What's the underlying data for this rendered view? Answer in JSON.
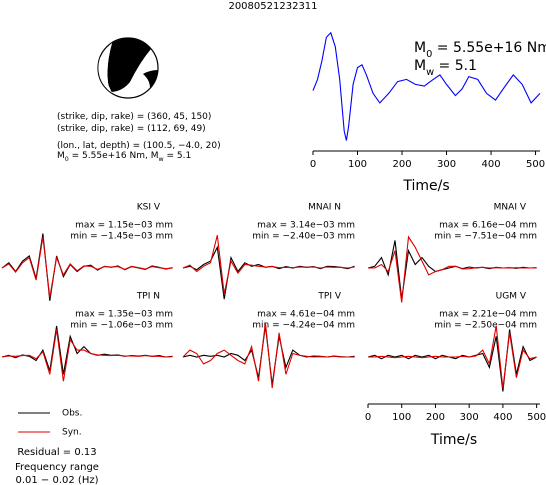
{
  "title": "20080521232311",
  "source": {
    "lines": [
      [
        "(strike, dip, rake) = (360, 45, 150)"
      ],
      [
        "(strike, dip, rake) = (112, 69, 49)"
      ],
      [
        "(lon., lat, depth) = (100.5, −4.0, 20)"
      ],
      [
        "M",
        "0",
        " = 5.55e+16 Nm, M",
        "w",
        " = 5.1"
      ]
    ]
  },
  "residual": "Residual = 0.13",
  "frequency_range": [
    "Frequency range",
    "0.01 − 0.02 (Hz)"
  ],
  "chart_data": [
    {
      "type": "line",
      "xlabel": "Time/s",
      "annotations": [
        [
          "M",
          "0",
          " = 5.55e+16 Nm"
        ],
        [
          "M",
          "w",
          " = 5.1"
        ]
      ],
      "x": [
        0,
        10,
        20,
        30,
        40,
        50,
        60,
        70,
        75,
        80,
        90,
        100,
        110,
        120,
        135,
        150,
        170,
        190,
        210,
        230,
        250,
        270,
        285,
        300,
        320,
        335,
        350,
        370,
        390,
        410,
        430,
        450,
        470,
        490,
        510
      ],
      "values": [
        -0.03,
        0.17,
        0.5,
        0.92,
        1.0,
        0.75,
        0.17,
        -0.75,
        -0.92,
        -0.67,
        0.08,
        0.38,
        0.43,
        0.25,
        -0.08,
        -0.25,
        -0.08,
        0.13,
        0.17,
        0.08,
        0.05,
        0.17,
        0.25,
        0.08,
        -0.12,
        0,
        0.22,
        0.17,
        -0.08,
        -0.2,
        0.03,
        0.25,
        0.08,
        -0.25,
        -0.08
      ],
      "color": "#0000ff",
      "xlim": [
        0,
        510
      ],
      "ylim": [
        -1.0,
        1.05
      ],
      "xticks": [
        0,
        100,
        200,
        300,
        400,
        500
      ]
    },
    {
      "type": "line",
      "station": "KSI V",
      "max_label": "max = 1.15e−03 mm",
      "min_label": "min = −1.45e−03 mm",
      "x": [
        0,
        20,
        40,
        60,
        80,
        100,
        120,
        140,
        160,
        180,
        200,
        220,
        240,
        260,
        280,
        300,
        320,
        340,
        360,
        380,
        400,
        420,
        440,
        460,
        480,
        500
      ],
      "xlim": [
        0,
        510
      ],
      "ylim": [
        -1.1,
        1.1
      ],
      "series": [
        {
          "name": "Obs.",
          "color": "#000000",
          "values": [
            0,
            0.15,
            -0.1,
            0.2,
            0.35,
            -0.3,
            1.0,
            -0.95,
            0.35,
            -0.25,
            0.1,
            -0.1,
            0.05,
            0.08,
            -0.06,
            0.05,
            0.02,
            0.06,
            -0.05,
            0.04,
            0,
            -0.04,
            0.06,
            0.02,
            -0.03,
            0.01
          ]
        },
        {
          "name": "Syn.",
          "color": "#e00000",
          "values": [
            0,
            0.12,
            -0.12,
            0.15,
            0.3,
            -0.35,
            0.9,
            -0.85,
            0.3,
            -0.2,
            0.12,
            -0.08,
            0.06,
            0.05,
            -0.04,
            0.04,
            0.03,
            0.04,
            -0.04,
            0.05,
            0.01,
            -0.03,
            0.04,
            0.01,
            -0.02,
            0
          ]
        }
      ]
    },
    {
      "type": "line",
      "station": "MNAI N",
      "max_label": "max = 3.14e−03 mm",
      "min_label": "min = −2.40e−03 mm",
      "x": [
        0,
        20,
        40,
        60,
        80,
        100,
        120,
        140,
        160,
        180,
        200,
        220,
        240,
        260,
        280,
        300,
        320,
        340,
        360,
        380,
        400,
        420,
        440,
        460,
        480,
        500
      ],
      "xlim": [
        0,
        510
      ],
      "ylim": [
        -1.1,
        1.1
      ],
      "series": [
        {
          "color": "#000000",
          "values": [
            0,
            0.05,
            -0.05,
            0.1,
            0.2,
            0.6,
            -0.9,
            0.3,
            -0.1,
            0.15,
            0.05,
            0.1,
            0.02,
            0.05,
            -0.02,
            0.04,
            0,
            0.05,
            0.02,
            0.04,
            -0.02,
            0.05,
            0.04,
            0.02,
            -0.02,
            0.05
          ]
        },
        {
          "color": "#e00000",
          "values": [
            0,
            0.08,
            -0.1,
            0.05,
            0.15,
            0.95,
            -0.75,
            0.2,
            -0.15,
            0.1,
            0.08,
            0.05,
            0.03,
            0.04,
            0.01,
            0.02,
            0.01,
            0.03,
            0.02,
            0.03,
            0,
            0.03,
            0.02,
            0.02,
            0,
            0.03
          ]
        }
      ]
    },
    {
      "type": "line",
      "station": "MNAI V",
      "max_label": "max = 6.16e−04 mm",
      "min_label": "min = −7.51e−04 mm",
      "x": [
        0,
        20,
        40,
        60,
        80,
        100,
        120,
        140,
        160,
        180,
        200,
        220,
        240,
        260,
        280,
        300,
        320,
        340,
        360,
        380,
        400,
        420,
        440,
        460,
        480,
        500
      ],
      "xlim": [
        0,
        510
      ],
      "ylim": [
        -1.1,
        1.1
      ],
      "series": [
        {
          "color": "#000000",
          "values": [
            0,
            0.05,
            0.3,
            -0.2,
            0.8,
            -0.9,
            0.5,
            0.1,
            0.3,
            0.05,
            -0.1,
            -0.05,
            0,
            0.05,
            -0.02,
            0.03,
            0,
            0.02,
            -0.02,
            0.02,
            0,
            0.01,
            -0.01,
            0.02,
            0,
            0.01
          ]
        },
        {
          "color": "#e00000",
          "values": [
            0,
            0,
            0.1,
            -0.1,
            0.5,
            -1.0,
            0.9,
            0.6,
            0.2,
            -0.2,
            -0.1,
            -0.05,
            0.05,
            0.05,
            -0.03,
            -0.02,
            0.01,
            0.02,
            0,
            0.01,
            0,
            0,
            0.01,
            0,
            0,
            0
          ]
        }
      ]
    },
    {
      "type": "line",
      "station": "TPI N",
      "max_label": "max = 1.35e−03 mm",
      "min_label": "min = −1.06e−03 mm",
      "x": [
        0,
        20,
        40,
        60,
        80,
        100,
        120,
        140,
        160,
        180,
        200,
        220,
        240,
        260,
        280,
        300,
        320,
        340,
        360,
        380,
        400,
        420,
        440,
        460,
        480,
        500
      ],
      "xlim": [
        0,
        510
      ],
      "ylim": [
        -1.1,
        1.1
      ],
      "series": [
        {
          "color": "#000000",
          "values": [
            0,
            0.05,
            -0.02,
            0.06,
            0.02,
            -0.1,
            0.2,
            -0.4,
            0.9,
            -0.5,
            0.6,
            0.1,
            0.3,
            0.1,
            0.05,
            0.08,
            0.05,
            0.06,
            0.02,
            0.04,
            0.03,
            0.05,
            0.02,
            0.04,
            0,
            0.02
          ]
        },
        {
          "color": "#e00000",
          "values": [
            0,
            0.03,
            0.02,
            0.04,
            0.05,
            -0.05,
            0.15,
            -0.5,
            0.8,
            -0.7,
            0.5,
            0.2,
            0.2,
            0.1,
            0.06,
            0.05,
            0.04,
            0.05,
            0.03,
            0.03,
            0.02,
            0.04,
            0.02,
            0.02,
            0,
            0.01
          ]
        }
      ]
    },
    {
      "type": "line",
      "station": "TPI V",
      "max_label": "max = 4.61e−04 mm",
      "min_label": "min = −4.24e−04 mm",
      "x": [
        0,
        20,
        40,
        60,
        80,
        100,
        120,
        140,
        160,
        180,
        200,
        220,
        240,
        260,
        280,
        300,
        320,
        340,
        360,
        380,
        400,
        420,
        440,
        460,
        480,
        500
      ],
      "xlim": [
        0,
        510
      ],
      "ylim": [
        -1.1,
        1.1
      ],
      "series": [
        {
          "color": "#000000",
          "values": [
            0,
            0.05,
            0,
            0.05,
            0.02,
            0.05,
            0,
            0.1,
            0.05,
            -0.1,
            0.2,
            -0.6,
            0.9,
            -0.8,
            0.6,
            -0.3,
            0.2,
            0.05,
            0,
            0.03,
            0.02,
            0,
            0.03,
            0.01,
            0,
            0.02
          ]
        },
        {
          "color": "#e00000",
          "values": [
            0,
            0.2,
            0.1,
            -0.2,
            -0.1,
            0.1,
            0.2,
            0.05,
            -0.1,
            -0.2,
            0.3,
            -0.7,
            1.0,
            -0.9,
            0.7,
            -0.5,
            0.1,
            0.05,
            0.02,
            0,
            0.01,
            0,
            0.02,
            0,
            0,
            0
          ]
        }
      ]
    },
    {
      "type": "line",
      "station": "UGM V",
      "max_label": "max = 2.21e−04 mm",
      "min_label": "min = −2.50e−04 mm",
      "x": [
        0,
        20,
        40,
        60,
        80,
        100,
        120,
        140,
        160,
        180,
        200,
        220,
        240,
        260,
        280,
        300,
        320,
        340,
        360,
        380,
        400,
        420,
        440,
        460,
        480,
        500
      ],
      "xlim": [
        0,
        510
      ],
      "ylim": [
        -1.1,
        1.1
      ],
      "xticks": [
        0,
        100,
        200,
        300,
        400,
        500
      ],
      "xlabel": "Time/s",
      "series": [
        {
          "color": "#000000",
          "values": [
            0,
            0.05,
            -0.05,
            0.05,
            0,
            0.05,
            -0.05,
            0.05,
            0,
            0.05,
            -0.05,
            0.05,
            0,
            -0.05,
            0.05,
            0,
            0.05,
            0.1,
            -0.3,
            0.6,
            -1.0,
            0.8,
            -0.5,
            0.3,
            -0.1,
            0
          ]
        },
        {
          "color": "#e00000",
          "values": [
            0,
            0,
            0.02,
            0,
            -0.02,
            0,
            0.02,
            0,
            -0.02,
            0,
            0.02,
            0,
            0,
            0,
            0.02,
            0,
            0.03,
            0.2,
            -0.2,
            0.9,
            -0.9,
            0.7,
            -0.6,
            0.2,
            -0.05,
            0
          ]
        }
      ]
    }
  ]
}
